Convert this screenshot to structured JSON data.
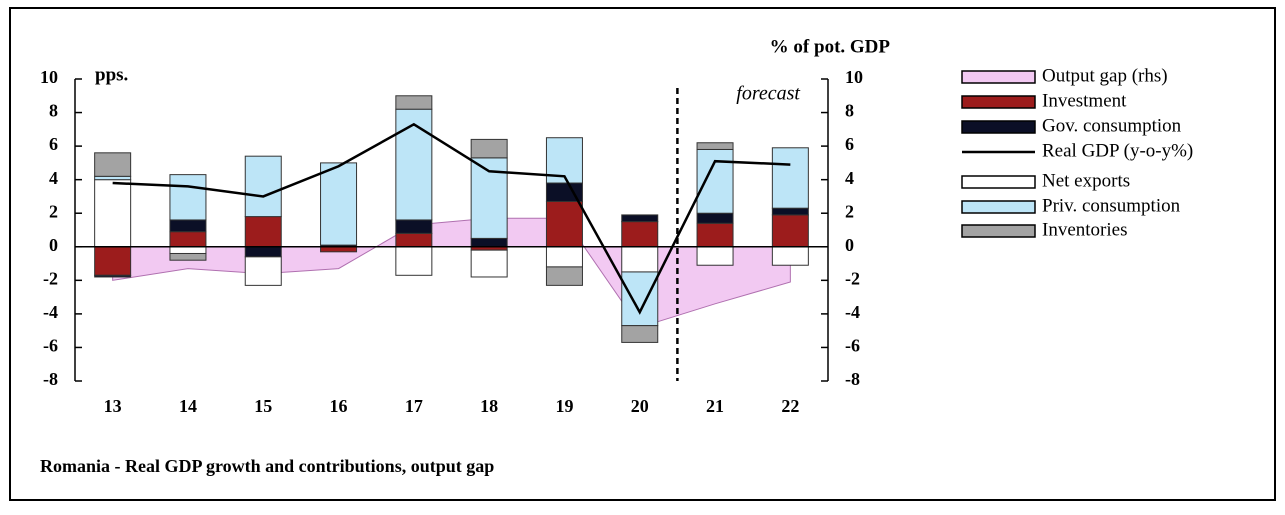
{
  "chart_data": {
    "type": "bar",
    "title": "Romania - Real GDP growth and contributions, output gap",
    "y_label": "pps.",
    "y2_label": "% of pot. GDP",
    "annotation": "forecast",
    "categories": [
      "13",
      "14",
      "15",
      "16",
      "17",
      "18",
      "19",
      "20",
      "21",
      "22"
    ],
    "series": [
      {
        "name": "Output gap (rhs)",
        "type": "area",
        "axis": "y2",
        "color": "#f2c9f2",
        "values": [
          -2.0,
          -1.3,
          -1.6,
          -1.3,
          1.3,
          1.7,
          1.7,
          -4.8,
          -3.4,
          -2.1
        ]
      },
      {
        "name": "Investment",
        "type": "bar",
        "color": "#9c1c1c",
        "values": [
          -1.7,
          0.9,
          1.8,
          -0.3,
          0.8,
          -0.2,
          2.7,
          1.5,
          1.4,
          1.9
        ]
      },
      {
        "name": "Gov. consumption",
        "type": "bar",
        "color": "#0b0f26",
        "values": [
          -0.1,
          0.7,
          -0.6,
          0.1,
          0.8,
          0.5,
          1.1,
          0.4,
          0.6,
          0.4
        ]
      },
      {
        "name": "Real GDP (y-o-y%)",
        "type": "line",
        "color": "#000000",
        "values": [
          3.8,
          3.6,
          3.0,
          4.8,
          7.3,
          4.5,
          4.2,
          -3.9,
          5.1,
          4.9
        ]
      },
      {
        "name": "Net exports",
        "type": "bar",
        "color": "#ffffff",
        "values": [
          4.0,
          -0.4,
          -1.7,
          0.0,
          -1.7,
          -1.6,
          -1.2,
          -1.5,
          -1.1,
          -1.1
        ]
      },
      {
        "name": "Priv. consumption",
        "type": "bar",
        "color": "#bde5f7",
        "values": [
          0.2,
          2.7,
          3.6,
          4.9,
          6.6,
          4.8,
          2.7,
          -3.2,
          3.8,
          3.6
        ]
      },
      {
        "name": "Inventories",
        "type": "bar",
        "color": "#a3a3a3",
        "values": [
          1.4,
          -0.4,
          0.0,
          0.0,
          0.8,
          1.1,
          -1.1,
          -1.0,
          0.4,
          0.0
        ]
      }
    ],
    "ylim": [
      -8,
      10
    ],
    "yticks": [
      -8,
      -6,
      -4,
      -2,
      0,
      2,
      4,
      6,
      8,
      10
    ],
    "y2lim": [
      -8,
      10
    ],
    "y2ticks": [
      -8,
      -6,
      -4,
      -2,
      0,
      2,
      4,
      6,
      8,
      10
    ]
  }
}
